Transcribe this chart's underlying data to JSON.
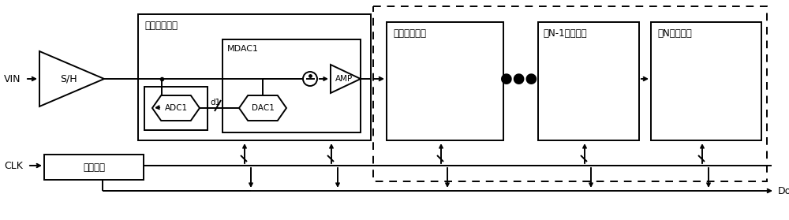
{
  "bg_color": "#ffffff",
  "line_color": "#000000",
  "figsize": [
    10.0,
    2.79
  ],
  "dpi": 100,
  "labels": {
    "VIN": "VIN",
    "CLK": "CLK",
    "SH": "S/H",
    "stage1": "第一级流水线",
    "MDAC1": "MDAC1",
    "ADC1": "ADC1",
    "DAC1": "DAC1",
    "d1": "d1",
    "AMP": "AMP",
    "clk_circuit": "时钟电路",
    "stage2": "第二级流水线",
    "stageN1": "第N-1级流水线",
    "stageN": "第N级流水线",
    "Dout": "Dout",
    "dots": "●●●"
  }
}
